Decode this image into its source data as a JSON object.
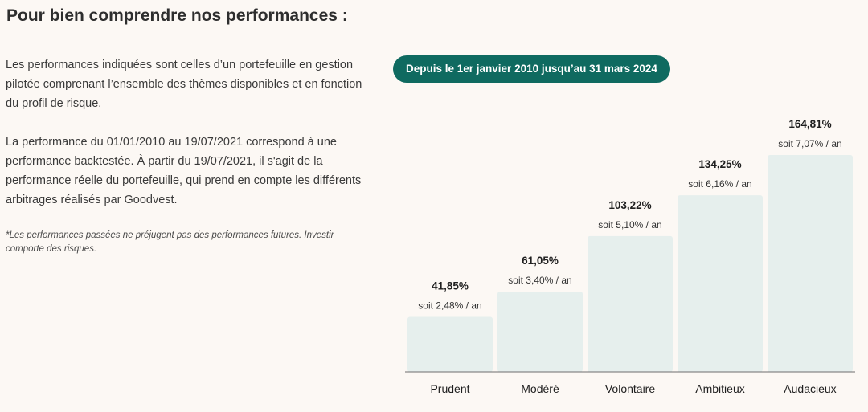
{
  "page": {
    "title": "Pour bien comprendre nos performances :",
    "paragraphs": [
      "Les performances indiquées sont celles d’un portefeuille en gestion pilotée comprenant l’ensemble des thèmes disponibles et en fonction du profil de risque.",
      "La performance du 01/01/2010 au 19/07/2021 correspond à une performance backtestée. À partir du 19/07/2021, il s'agit de la performance réelle du portefeuille, qui prend en compte les différents arbitrages réalisés par Goodvest."
    ],
    "disclaimer": "*Les performances passées ne préjugent pas des performances futures. Investir comporte des risques.",
    "period_label": "Depuis le 1er janvier 2010 jusqu’au 31 mars 2024"
  },
  "colors": {
    "background": "#fcf8f4",
    "bar": "#e6efed",
    "pill": "#0f6a60",
    "axis": "#6e6e6e"
  },
  "chart_data": {
    "type": "bar",
    "categories": [
      "Prudent",
      "Modéré",
      "Volontaire",
      "Ambitieux",
      "Audacieux"
    ],
    "values": [
      41.85,
      61.05,
      103.22,
      134.25,
      164.81
    ],
    "value_labels": [
      "41,85%",
      "61,05%",
      "103,22%",
      "134,25%",
      "164,81%"
    ],
    "annual_labels": [
      "soit 2,48% / an",
      "soit 3,40% / an",
      "soit 5,10% / an",
      "soit 6,16% / an",
      "soit 7,07% / an"
    ],
    "title": "",
    "xlabel": "",
    "ylabel": "",
    "grid": false
  }
}
